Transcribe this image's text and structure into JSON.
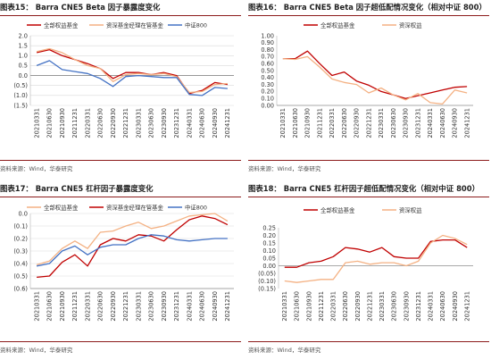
{
  "colors": {
    "accent_rule": "#8c1b1b",
    "red": "#c00000",
    "orange": "#f4b183",
    "blue": "#4472c4"
  },
  "chart_data": [
    {
      "id": "c15",
      "type": "line",
      "title": "图表15：  Barra CNE5 Beta 因子暴露度变化",
      "source": "资料来源：Wind，华泰研究",
      "xlabel": "",
      "ylabel": "",
      "ylim": [
        -1.5,
        2.0
      ],
      "yticks": [
        -1.5,
        -1.0,
        -0.5,
        0.0,
        0.5,
        1.0,
        1.5,
        2.0
      ],
      "ytick_labels": [
        "(1.5)",
        "(1.0)",
        "(0.5)",
        "0.0",
        "0.5",
        "1.0",
        "1.5",
        "2.0"
      ],
      "x": [
        "20210331",
        "20210630",
        "20210930",
        "20211231",
        "20220331",
        "20220630",
        "20220930",
        "20221231",
        "20230331",
        "20230630",
        "20230930",
        "20231231",
        "20240331",
        "20240630",
        "20240930",
        "20241231"
      ],
      "grid": "horizontal",
      "legend": "top",
      "series": [
        {
          "name": "全部权益基金",
          "color": "#c00000",
          "values": [
            1.15,
            1.3,
            1.0,
            0.8,
            0.6,
            0.35,
            -0.15,
            0.15,
            0.15,
            0.05,
            0.15,
            0.0,
            -0.9,
            -0.75,
            -0.35,
            -0.45
          ]
        },
        {
          "name": "资深基金经理在管基金",
          "color": "#f4b183",
          "values": [
            1.2,
            1.35,
            1.15,
            0.8,
            0.5,
            0.35,
            -0.3,
            0.05,
            0.1,
            0.05,
            0.1,
            -0.05,
            -0.85,
            -0.8,
            -0.45,
            -0.4
          ]
        },
        {
          "name": "中证800",
          "color": "#4472c4",
          "values": [
            0.5,
            0.75,
            0.3,
            0.2,
            0.1,
            -0.15,
            -0.55,
            -0.05,
            0.0,
            -0.05,
            -0.1,
            -0.1,
            -0.95,
            -1.0,
            -0.6,
            -0.65
          ]
        }
      ]
    },
    {
      "id": "c16",
      "type": "line",
      "title": "图表16：  Barra CNE5 Beta 因子超低配情况变化（相对中证 800）",
      "source": "资料来源：Wind，华泰研究",
      "xlabel": "",
      "ylabel": "",
      "ylim": [
        0.0,
        1.0
      ],
      "yticks": [
        0.0,
        0.1,
        0.2,
        0.3,
        0.4,
        0.5,
        0.6,
        0.7,
        0.8,
        0.9,
        1.0
      ],
      "ytick_labels": [
        "0.00",
        "0.10",
        "0.20",
        "0.30",
        "0.40",
        "0.50",
        "0.60",
        "0.70",
        "0.80",
        "0.90",
        "1.00"
      ],
      "x": [
        "20210331",
        "20210630",
        "20210930",
        "20211231",
        "20220331",
        "20220630",
        "20220930",
        "20221231",
        "20230331",
        "20230630",
        "20230930",
        "20231231",
        "20240331",
        "20240630",
        "20240930",
        "20241231"
      ],
      "grid": "none",
      "legend": "top",
      "series": [
        {
          "name": "全部权益基金",
          "color": "#c00000",
          "values": [
            0.67,
            0.67,
            0.78,
            0.6,
            0.43,
            0.48,
            0.35,
            0.29,
            0.2,
            0.15,
            0.1,
            0.14,
            0.18,
            0.22,
            0.26,
            0.27
          ]
        },
        {
          "name": "资深权益",
          "color": "#f4b183",
          "values": [
            0.67,
            0.66,
            0.7,
            0.55,
            0.38,
            0.33,
            0.3,
            0.18,
            0.25,
            0.15,
            0.08,
            0.17,
            0.04,
            0.02,
            0.22,
            0.18
          ]
        }
      ]
    },
    {
      "id": "c17",
      "type": "line",
      "title": "图表17：  Barra CNE5 杠杆因子暴露度变化",
      "source": "资料来源：Wind，华泰研究",
      "xlabel": "",
      "ylabel": "",
      "ylim": [
        -0.6,
        0.0
      ],
      "yticks": [
        -0.6,
        -0.5,
        -0.4,
        -0.3,
        -0.2,
        -0.1,
        0.0
      ],
      "ytick_labels": [
        "(0.6)",
        "(0.5)",
        "(0.4)",
        "(0.3)",
        "(0.2)",
        "(0.1)",
        "0.0"
      ],
      "x": [
        "20210331",
        "20210630",
        "20210930",
        "20211231",
        "20220331",
        "20220630",
        "20220930",
        "20221231",
        "20230331",
        "20230630",
        "20230930",
        "20231231",
        "20240331",
        "20240630",
        "20240930",
        "20241231"
      ],
      "grid": "horizontal",
      "legend": "top",
      "series": [
        {
          "name": "全部权益基金",
          "color": "#f4b183",
          "values": [
            -0.41,
            -0.38,
            -0.28,
            -0.22,
            -0.28,
            -0.15,
            -0.14,
            -0.1,
            -0.07,
            -0.12,
            -0.1,
            -0.06,
            -0.02,
            -0.01,
            0.0,
            -0.06
          ]
        },
        {
          "name": "资深基金经理在管基金",
          "color": "#c00000",
          "values": [
            -0.51,
            -0.5,
            -0.39,
            -0.33,
            -0.42,
            -0.25,
            -0.2,
            -0.22,
            -0.17,
            -0.18,
            -0.22,
            -0.13,
            -0.05,
            -0.02,
            -0.04,
            -0.09
          ]
        },
        {
          "name": "中证800",
          "color": "#4472c4",
          "values": [
            -0.42,
            -0.4,
            -0.3,
            -0.26,
            -0.33,
            -0.27,
            -0.25,
            -0.25,
            -0.2,
            -0.17,
            -0.18,
            -0.21,
            -0.22,
            -0.21,
            -0.2,
            -0.2
          ]
        }
      ]
    },
    {
      "id": "c18",
      "type": "line",
      "title": "图表18：  Barra CNE5 杠杆因子超低配情况变化（相对中证 800）",
      "source": "资料来源：Wind，华泰研究",
      "xlabel": "",
      "ylabel": "",
      "ylim": [
        -0.15,
        0.25
      ],
      "yticks": [
        -0.15,
        -0.1,
        -0.05,
        0.0,
        0.05,
        0.1,
        0.15,
        0.2,
        0.25
      ],
      "ytick_labels": [
        "(0.15)",
        "(0.10)",
        "(0.05)",
        "0.00",
        "0.05",
        "0.10",
        "0.15",
        "0.20",
        "0.25"
      ],
      "x": [
        "20210331",
        "20210630",
        "20210930",
        "20211231",
        "20220331",
        "20220630",
        "20220930",
        "20221231",
        "20230331",
        "20230630",
        "20230930",
        "20231231",
        "20240331",
        "20240630",
        "20240930",
        "20241231"
      ],
      "grid": "none",
      "legend": "top",
      "series": [
        {
          "name": "全部权益基金",
          "color": "#c00000",
          "values": [
            -0.01,
            -0.01,
            0.02,
            0.03,
            0.06,
            0.12,
            0.11,
            0.09,
            0.12,
            0.06,
            0.05,
            0.05,
            0.16,
            0.17,
            0.17,
            0.12
          ]
        },
        {
          "name": "资深权益",
          "color": "#f4b183",
          "values": [
            -0.1,
            -0.11,
            -0.1,
            -0.09,
            -0.09,
            0.02,
            0.03,
            0.01,
            0.02,
            0.02,
            0.0,
            0.03,
            0.15,
            0.2,
            0.18,
            0.14
          ]
        }
      ]
    }
  ]
}
